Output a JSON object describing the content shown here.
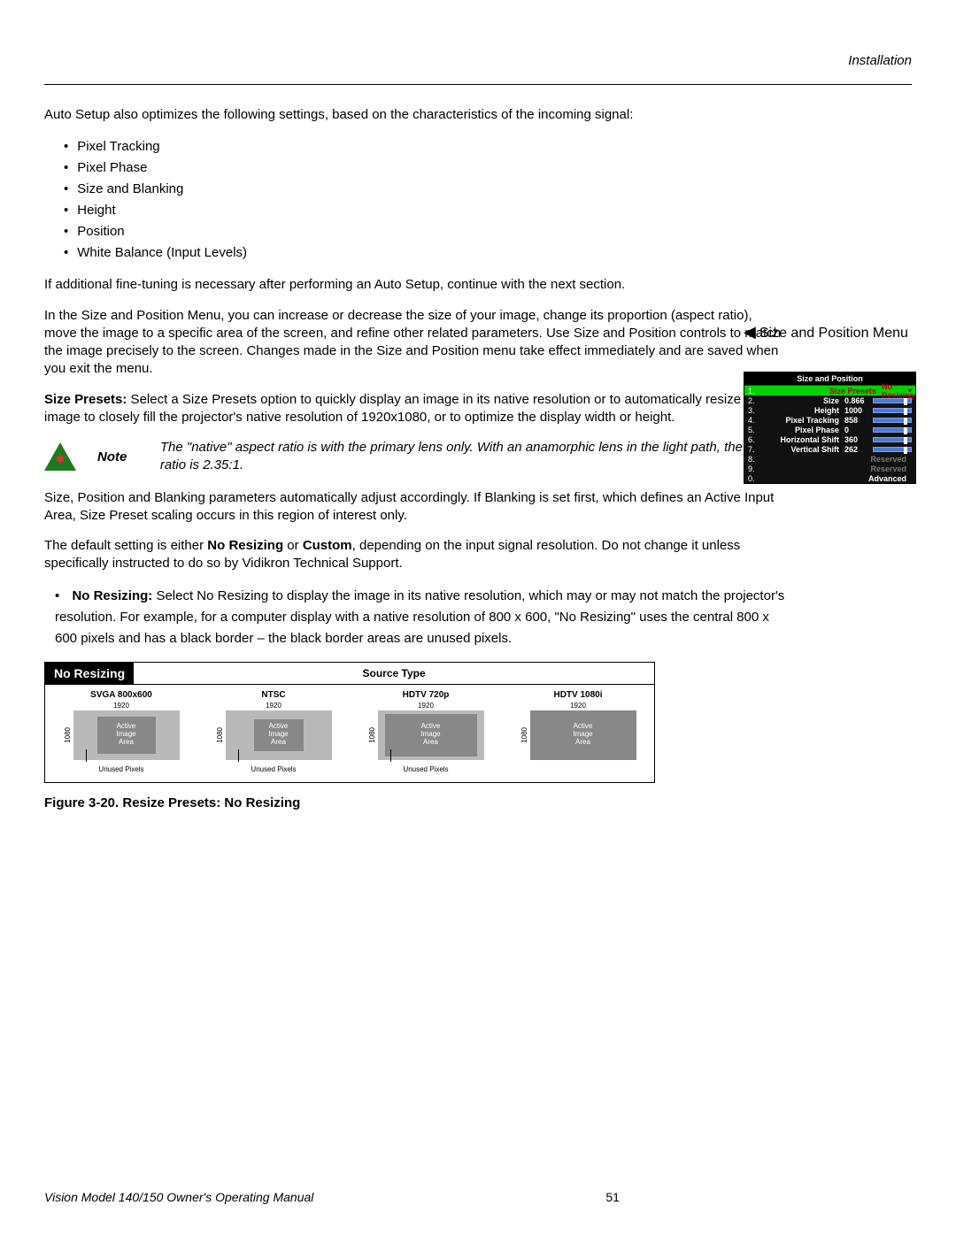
{
  "header": {
    "section": "Installation"
  },
  "intro": {
    "lead": "Auto Setup also optimizes the following settings, based on the characteristics of the incoming signal:",
    "bullets": [
      "Pixel Tracking",
      "Pixel Phase",
      "Size and Blanking",
      "Height",
      "Position",
      "White Balance (Input Levels)"
    ],
    "followup": "If additional fine-tuning is necessary after performing an Auto Setup, continue with the next section."
  },
  "size_pos": {
    "para": "In the Size and Position Menu, you can increase or decrease the size of your image, change its proportion (aspect ratio), move the image to a specific area of the screen, and refine other related parameters. Use Size and Position controls to match the image precisely to the screen. Changes made in the Size and Position menu take effect immediately and are saved when you exit the menu.",
    "side_heading": "Size and Position Menu",
    "presets_label": "Size Presets:",
    "presets_text": " Select a Size Presets option to quickly display an image in its native resolution or to automatically resize an image to closely fill the projector's native resolution of 1920x1080, or to optimize the display width or height."
  },
  "note": {
    "label": "Note",
    "text": "The \"native\" aspect ratio is with the primary lens only. With an anamorphic lens in the light path, the aspect ratio is 2.35:1."
  },
  "after_note": {
    "p1": "Size, Position and Blanking parameters automatically adjust accordingly. If Blanking is set first, which defines an Active Input Area, Size Preset scaling occurs in this region of interest only.",
    "p2a": "The default setting is either ",
    "p2b": "No Resizing",
    "p2c": " or ",
    "p2d": "Custom",
    "p2e": ", depending on the input signal resolution. Do not change it unless specifically instructed to do so by Vidikron Technical Support.",
    "nr_label": "No Resizing:",
    "nr_text": " Select No Resizing to display the image in its native resolution, which may or may not match the projector's resolution. For example, for a computer display with a native resolution of 800 x 600, \"No Resizing\" uses the central 800 x 600 pixels and has a black border – the black border areas are unused pixels."
  },
  "menu": {
    "title": "Size and Position",
    "rows": [
      {
        "n": "1.",
        "lbl": "Size Presets",
        "val": "No Resizing",
        "sel": true
      },
      {
        "n": "2.",
        "lbl": "Size",
        "val": "0.866",
        "slider": true
      },
      {
        "n": "3.",
        "lbl": "Height",
        "val": "1000",
        "slider": true
      },
      {
        "n": "4.",
        "lbl": "Pixel Tracking",
        "val": "858",
        "slider": true
      },
      {
        "n": "5.",
        "lbl": "Pixel Phase",
        "val": "0",
        "slider": true
      },
      {
        "n": "6.",
        "lbl": "Horizontal Shift",
        "val": "360",
        "slider": true
      },
      {
        "n": "7.",
        "lbl": "Vertical Shift",
        "val": "262",
        "slider": true
      },
      {
        "n": "8.",
        "lbl": "Reserved",
        "grey": true
      },
      {
        "n": "9.",
        "lbl": "Reserved",
        "grey": true
      },
      {
        "n": "0.",
        "lbl": "Advanced"
      }
    ]
  },
  "figure": {
    "tag": "No Resizing",
    "source_type": "Source Type",
    "dim_horiz": "1920",
    "dim_vert": "1080",
    "active_label": "Active\nImage\nArea",
    "unused": "Unused Pixels",
    "cols": [
      {
        "title": "SVGA 800x600",
        "aw": 66,
        "ah": 42,
        "unused": true
      },
      {
        "title": "NTSC",
        "aw": 56,
        "ah": 36,
        "unused": true
      },
      {
        "title": "HDTV 720p",
        "aw": 104,
        "ah": 48,
        "unused": true
      },
      {
        "title": "HDTV 1080i",
        "aw": 120,
        "ah": 56,
        "unused": false
      }
    ],
    "caption": "Figure 3-20. Resize Presets: No Resizing"
  },
  "footer": {
    "manual": "Vision Model 140/150 Owner's Operating Manual",
    "page": "51"
  }
}
